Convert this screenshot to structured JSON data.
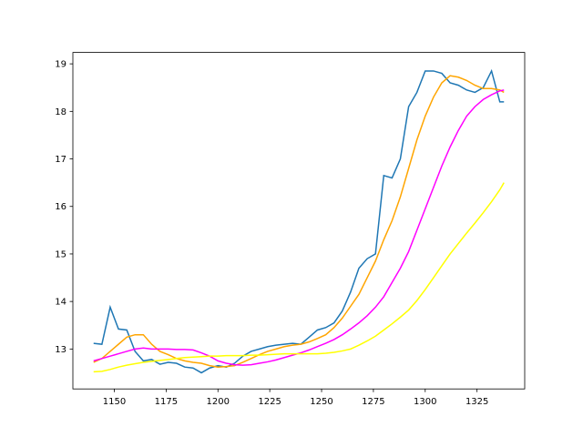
{
  "chart_data": {
    "type": "line",
    "x": [
      1140,
      1144,
      1148,
      1152,
      1156,
      1160,
      1164,
      1168,
      1172,
      1176,
      1180,
      1184,
      1188,
      1192,
      1196,
      1200,
      1204,
      1208,
      1212,
      1216,
      1220,
      1224,
      1228,
      1232,
      1236,
      1240,
      1244,
      1248,
      1252,
      1256,
      1260,
      1264,
      1268,
      1272,
      1276,
      1280,
      1284,
      1288,
      1292,
      1296,
      1300,
      1304,
      1308,
      1312,
      1316,
      1320,
      1324,
      1328,
      1332,
      1336,
      1338
    ],
    "series": [
      {
        "color": "#1f77b4",
        "values": [
          13.12,
          13.1,
          13.88,
          13.42,
          13.4,
          12.95,
          12.75,
          12.78,
          12.68,
          12.72,
          12.7,
          12.62,
          12.6,
          12.5,
          12.6,
          12.65,
          12.62,
          12.7,
          12.85,
          12.95,
          13.0,
          13.05,
          13.08,
          13.1,
          13.12,
          13.1,
          13.25,
          13.4,
          13.45,
          13.55,
          13.8,
          14.2,
          14.7,
          14.9,
          15.0,
          16.65,
          16.6,
          17.0,
          18.1,
          18.4,
          18.85,
          18.85,
          18.8,
          18.6,
          18.55,
          18.45,
          18.4,
          18.5,
          18.85,
          18.2,
          18.2
        ]
      },
      {
        "color": "#ffa500",
        "values": [
          12.72,
          12.8,
          12.95,
          13.1,
          13.25,
          13.3,
          13.3,
          13.1,
          12.95,
          12.88,
          12.8,
          12.75,
          12.72,
          12.7,
          12.65,
          12.62,
          12.63,
          12.65,
          12.72,
          12.8,
          12.88,
          12.95,
          13.0,
          13.05,
          13.08,
          13.1,
          13.15,
          13.22,
          13.3,
          13.45,
          13.65,
          13.9,
          14.15,
          14.5,
          14.85,
          15.3,
          15.7,
          16.2,
          16.8,
          17.4,
          17.9,
          18.3,
          18.6,
          18.75,
          18.72,
          18.65,
          18.55,
          18.48,
          18.48,
          18.45,
          18.4
        ]
      },
      {
        "color": "#ff00ff",
        "values": [
          12.75,
          12.8,
          12.85,
          12.9,
          12.95,
          13.0,
          13.02,
          13.0,
          13.0,
          13.0,
          12.99,
          12.99,
          12.98,
          12.92,
          12.85,
          12.75,
          12.7,
          12.67,
          12.66,
          12.67,
          12.7,
          12.73,
          12.77,
          12.82,
          12.87,
          12.92,
          12.98,
          13.05,
          13.12,
          13.2,
          13.3,
          13.42,
          13.55,
          13.7,
          13.88,
          14.1,
          14.4,
          14.7,
          15.05,
          15.5,
          15.95,
          16.4,
          16.85,
          17.25,
          17.6,
          17.9,
          18.1,
          18.25,
          18.35,
          18.43,
          18.45
        ]
      },
      {
        "color": "#ffff00",
        "values": [
          12.52,
          12.53,
          12.57,
          12.62,
          12.66,
          12.69,
          12.72,
          12.74,
          12.76,
          12.78,
          12.8,
          12.82,
          12.83,
          12.84,
          12.85,
          12.85,
          12.86,
          12.86,
          12.86,
          12.87,
          12.87,
          12.88,
          12.89,
          12.9,
          12.9,
          12.9,
          12.9,
          12.9,
          12.91,
          12.93,
          12.96,
          13.0,
          13.08,
          13.17,
          13.27,
          13.4,
          13.53,
          13.67,
          13.82,
          14.02,
          14.25,
          14.5,
          14.75,
          15.0,
          15.22,
          15.44,
          15.65,
          15.87,
          16.1,
          16.35,
          16.5
        ]
      }
    ],
    "xlim": [
      1130,
      1348
    ],
    "xticks": [
      1150,
      1175,
      1200,
      1225,
      1250,
      1275,
      1300,
      1325
    ],
    "ylim": [
      12.16,
      19.24
    ],
    "yticks": [
      13,
      14,
      15,
      16,
      17,
      18,
      19
    ]
  }
}
